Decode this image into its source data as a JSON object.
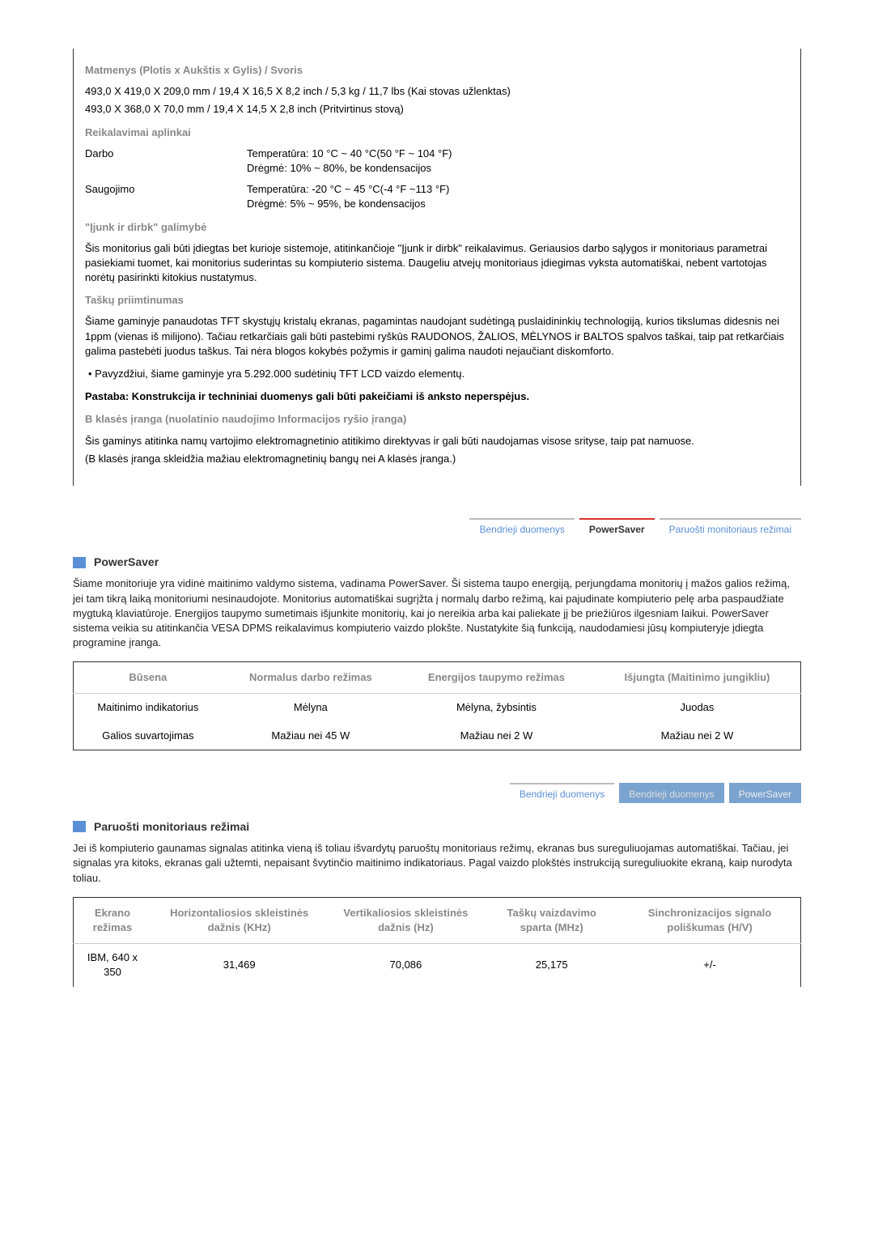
{
  "specs": {
    "dimensions_heading": "Matmenys (Plotis x Aukštis x Gylis) / Svoris",
    "dim_line1": "493,0 X 419,0 X 209,0 mm / 19,4 X 16,5 X 8,2 inch / 5,3 kg / 11,7 lbs (Kai stovas užlenktas)",
    "dim_line2": "493,0 X 368,0 X 70,0 mm / 19,4 X 14,5 X 2,8 inch (Pritvirtinus stovą)",
    "env_heading": "Reikalavimai aplinkai",
    "env_op_label": "Darbo",
    "env_op_temp": "Temperatūra: 10 °C ~ 40 °C(50 °F ~ 104 °F)",
    "env_op_hum": "Drėgmė: 10% ~ 80%, be kondensacijos",
    "env_st_label": "Saugojimo",
    "env_st_temp": "Temperatūra: -20 °C ~ 45 °C(-4 °F ~113 °F)",
    "env_st_hum": "Drėgmė: 5% ~ 95%, be kondensacijos",
    "pnp_heading": "\"Įjunk ir dirbk\" galimybė",
    "pnp_text": "Šis monitorius gali būti įdiegtas bet kurioje sistemoje, atitinkančioje \"Įjunk ir dirbk\" reikalavimus. Geriausios darbo sąlygos ir monitoriaus parametrai pasiekiami tuomet, kai monitorius suderintas su kompiuterio sistema. Daugeliu atvejų monitoriaus įdiegimas vyksta automatiškai, nebent vartotojas norėtų pasirinkti kitokius nustatymus.",
    "dot_heading": "Taškų priimtinumas",
    "dot_text": "Šiame gaminyje panaudotas TFT skystųjų kristalų ekranas, pagamintas naudojant sudėtingą puslaidininkių technologiją, kurios tikslumas didesnis nei 1ppm (vienas iš milijono). Tačiau retkarčiais gali būti pastebimi ryškūs RAUDONOS, ŽALIOS, MĖLYNOS ir BALTOS spalvos taškai, taip pat retkarčiais galima pastebėti juodus taškus. Tai nėra blogos kokybės požymis ir gaminį galima naudoti nejaučiant diskomforto.",
    "dot_bullet": "• Pavyzdžiui, šiame gaminyje yra 5.292.000 sudėtinių TFT LCD vaizdo elementų.",
    "note_bold": "Pastaba: Konstrukcija ir techniniai duomenys gali būti pakeičiami iš anksto neperspėjus.",
    "classb_heading": "B klasės įranga (nuolatinio naudojimo Informacijos ryšio įranga)",
    "classb_text": "Šis gaminys atitinka namų vartojimo elektromagnetinio atitikimo direktyvas ir gali būti naudojamas visose srityse, taip pat namuose.",
    "classb_sub": "(B klasės įranga skleidžia mažiau elektromagnetinių bangų nei A klasės įranga.)"
  },
  "tabs1": {
    "t1": "Bendrieji duomenys",
    "t2": "PowerSaver",
    "t3": "Paruošti monitoriaus režimai"
  },
  "powersaver": {
    "title": "PowerSaver",
    "text": "Šiame monitoriuje yra vidinė maitinimo valdymo sistema, vadinama PowerSaver. Ši sistema taupo energiją, perjungdama monitorių į mažos galios režimą, jei tam tikrą laiką monitoriumi nesinaudojote. Monitorius automatiškai sugrįžta į normalų darbo režimą, kai pajudinate kompiuterio pelę arba paspaudžiate mygtuką klaviatūroje. Energijos taupymo sumetimais išjunkite monitorių, kai jo nereikia arba kai paliekate jį be priežiūros ilgesniam laikui. PowerSaver sistema veikia su atitinkančia VESA DPMS reikalavimus kompiuterio vaizdo plokšte. Nustatykite šią funkciją, naudodamiesi jūsų kompiuteryje įdiegta programine įranga.",
    "table": {
      "h1": "Būsena",
      "h2": "Normalus darbo režimas",
      "h3": "Energijos taupymo režimas",
      "h4": "Išjungta (Maitinimo jungikliu)",
      "r1c1": "Maitinimo indikatorius",
      "r1c2": "Mėlyna",
      "r1c3": "Mėlyna, žybsintis",
      "r1c4": "Juodas",
      "r2c1": "Galios suvartojimas",
      "r2c2": "Mažiau nei 45 W",
      "r2c3": "Mažiau nei 2 W",
      "r2c4": "Mažiau nei 2 W"
    }
  },
  "tabs2": {
    "t1": "Bendrieji duomenys",
    "t2": "Bendrieji duomenys",
    "t3": "PowerSaver"
  },
  "modes": {
    "title": "Paruošti monitoriaus režimai",
    "text": "Jei iš kompiuterio gaunamas signalas atitinka vieną iš toliau išvardytų paruoštų monitoriaus režimų, ekranas bus sureguliuojamas automatiškai. Tačiau, jei signalas yra kitoks, ekranas gali užtemti, nepaisant švytinčio maitinimo indikatoriaus. Pagal vaizdo plokštės instrukciją sureguliuokite ekraną, kaip nurodyta toliau.",
    "table": {
      "h1": "Ekrano režimas",
      "h2": "Horizontaliosios skleistinės dažnis (KHz)",
      "h3": "Vertikaliosios skleistinės dažnis (Hz)",
      "h4": "Taškų vaizdavimo sparta (MHz)",
      "h5": "Sinchronizacijos signalo poliškumas (H/V)",
      "r1c1": "IBM, 640 x 350",
      "r1c2": "31,469",
      "r1c3": "70,086",
      "r1c4": "25,175",
      "r1c5": "+/-"
    }
  }
}
